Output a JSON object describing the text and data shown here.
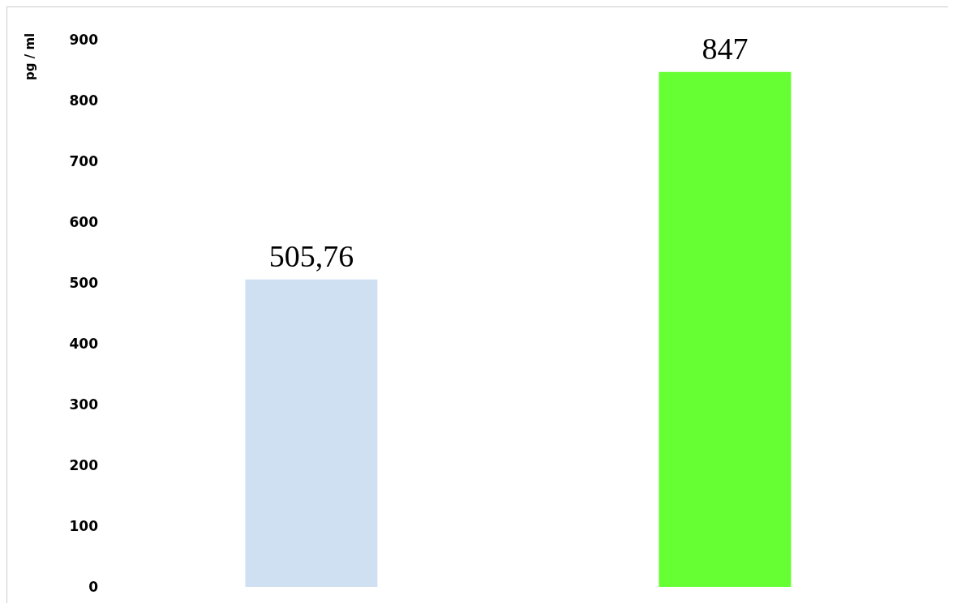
{
  "chart_data": {
    "type": "bar",
    "ylabel": "pg / ml",
    "categories": [
      null,
      null
    ],
    "values": [
      505.76,
      847
    ],
    "colors": [
      "#cfe0f2",
      "#66ff33"
    ],
    "value_labels": [
      "505,76",
      "847"
    ],
    "ylim": [
      0,
      900
    ],
    "yticks": [
      0,
      100,
      200,
      300,
      400,
      500,
      600,
      700,
      800,
      900
    ],
    "grid": false
  }
}
